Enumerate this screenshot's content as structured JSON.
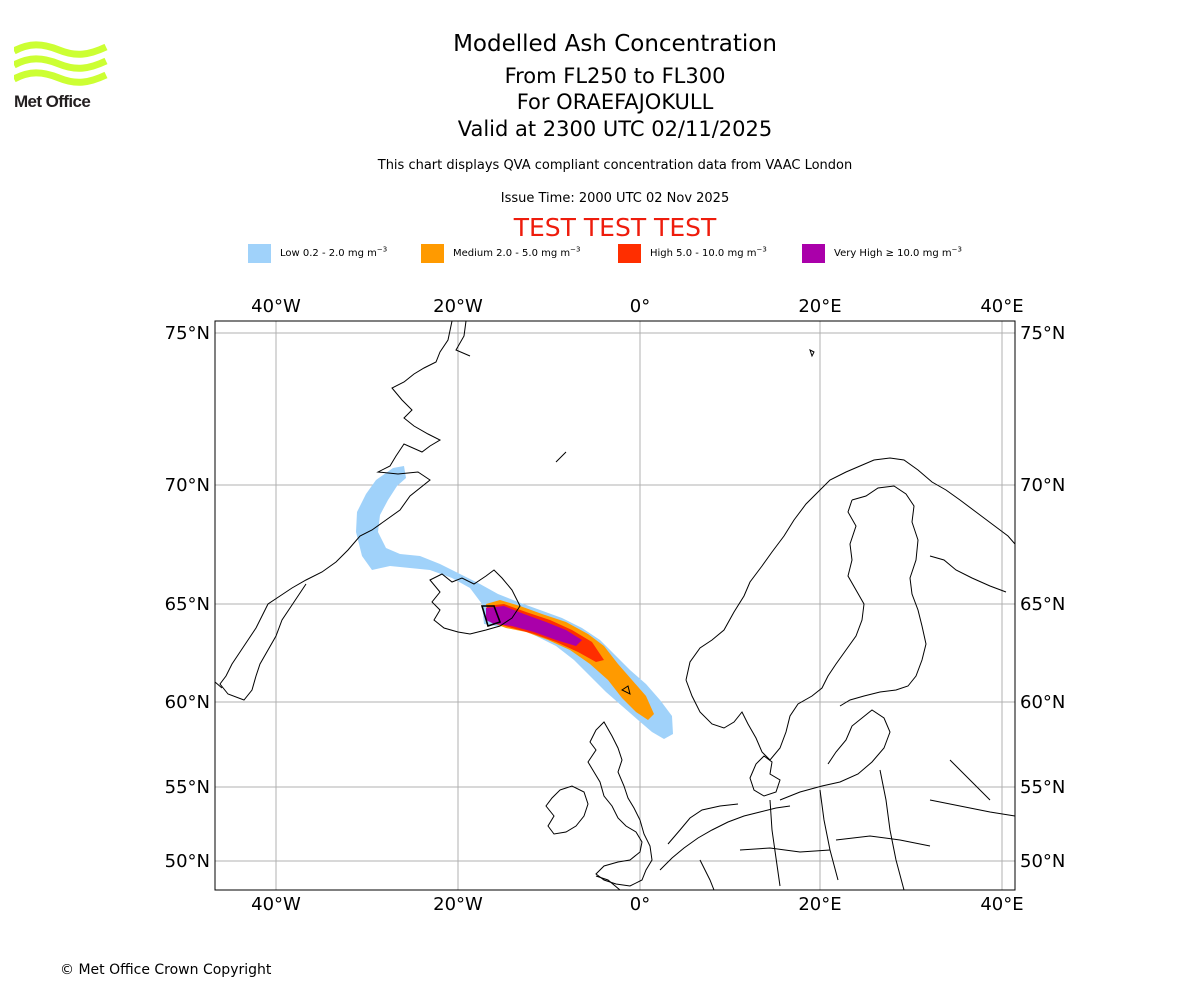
{
  "logo": {
    "text": "Met Office",
    "icon": "met-office-wave-logo",
    "color": "#ccff33"
  },
  "title": "Modelled Ash Concentration",
  "subtitle": {
    "levels": "From FL250 to FL300",
    "volcano": "For ORAEFAJOKULL",
    "valid": "Valid at 2300 UTC 02/11/2025"
  },
  "note": "This chart displays QVA compliant concentration data from VAAC London",
  "issue_time": "Issue Time: 2000 UTC 02 Nov 2025",
  "test_banner": "TEST TEST TEST",
  "legend": [
    {
      "label": "Low 0.2 - 2.0 mg m",
      "unit_exp": "−3",
      "color": "#a0d2fa"
    },
    {
      "label": "Medium 2.0 - 5.0 mg m",
      "unit_exp": "−3",
      "color": "#ff9a00"
    },
    {
      "label": "High 5.0 - 10.0 mg m",
      "unit_exp": "−3",
      "color": "#ff2e00"
    },
    {
      "label": "Very High  ≥  10.0 mg m",
      "unit_exp": "−3",
      "color": "#aa00aa"
    }
  ],
  "map": {
    "longitudes": [
      "40°W",
      "20°W",
      "0°",
      "20°E",
      "40°E"
    ],
    "latitudes": [
      "75°N",
      "70°N",
      "65°N",
      "60°N",
      "55°N",
      "50°N"
    ],
    "grid_color": "#b0b0b0",
    "coast_color": "#000000"
  },
  "copyright": "© Met Office Crown Copyright"
}
